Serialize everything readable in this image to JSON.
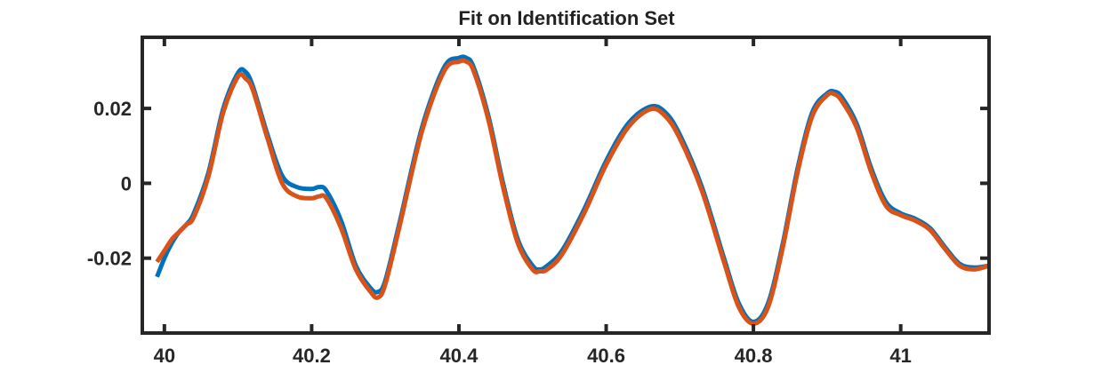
{
  "chart_data": {
    "type": "line",
    "title": "Fit on Identification Set",
    "xlabel": "",
    "ylabel": "",
    "xlim": [
      39.97,
      41.12
    ],
    "ylim": [
      -0.04,
      0.039
    ],
    "xticks": [
      40,
      40.2,
      40.4,
      40.6,
      40.8,
      41
    ],
    "xtick_labels": [
      "40",
      "40.2",
      "40.4",
      "40.6",
      "40.8",
      "41"
    ],
    "yticks": [
      -0.02,
      0,
      0.02
    ],
    "ytick_labels": [
      "-0.02",
      "0",
      "0.02"
    ],
    "grid": false,
    "legend": false,
    "series": [
      {
        "color": "#0072BD",
        "x": [
          39.99,
          40.0,
          40.01,
          40.02,
          40.03,
          40.04,
          40.06,
          40.08,
          40.1,
          40.11,
          40.12,
          40.14,
          40.16,
          40.18,
          40.2,
          40.21,
          40.22,
          40.24,
          40.26,
          40.28,
          40.29,
          40.3,
          40.32,
          40.35,
          40.38,
          40.4,
          40.41,
          40.42,
          40.44,
          40.46,
          40.48,
          40.5,
          40.51,
          40.52,
          40.54,
          40.57,
          40.6,
          40.63,
          40.66,
          40.68,
          40.7,
          40.73,
          40.76,
          40.78,
          40.8,
          40.82,
          40.84,
          40.86,
          40.88,
          40.9,
          40.91,
          40.92,
          40.94,
          40.96,
          40.98,
          41.0,
          41.02,
          41.04,
          41.06,
          41.08,
          41.1,
          41.12
        ],
        "y": [
          -0.025,
          -0.02,
          -0.016,
          -0.013,
          -0.011,
          -0.008,
          0.003,
          0.02,
          0.0295,
          0.0298,
          0.026,
          0.013,
          0.002,
          -0.001,
          -0.0015,
          -0.001,
          -0.002,
          -0.01,
          -0.022,
          -0.028,
          -0.029,
          -0.026,
          -0.01,
          0.015,
          0.031,
          0.0335,
          0.0335,
          0.031,
          0.018,
          0.0,
          -0.015,
          -0.022,
          -0.023,
          -0.022,
          -0.018,
          -0.007,
          0.006,
          0.016,
          0.0205,
          0.019,
          0.013,
          -0.001,
          -0.02,
          -0.032,
          -0.037,
          -0.032,
          -0.016,
          0.004,
          0.019,
          0.024,
          0.0245,
          0.023,
          0.016,
          0.004,
          -0.005,
          -0.008,
          -0.0095,
          -0.012,
          -0.017,
          -0.0215,
          -0.0225,
          -0.022
        ]
      },
      {
        "color": "#D95319",
        "x": [
          39.99,
          40.0,
          40.01,
          40.02,
          40.03,
          40.04,
          40.06,
          40.08,
          40.1,
          40.11,
          40.12,
          40.14,
          40.16,
          40.18,
          40.2,
          40.21,
          40.22,
          40.24,
          40.26,
          40.28,
          40.29,
          40.3,
          40.32,
          40.35,
          40.38,
          40.4,
          40.41,
          40.42,
          40.44,
          40.46,
          40.48,
          40.5,
          40.51,
          40.52,
          40.54,
          40.57,
          40.6,
          40.63,
          40.66,
          40.68,
          40.7,
          40.73,
          40.76,
          40.78,
          40.8,
          40.82,
          40.84,
          40.86,
          40.88,
          40.9,
          40.91,
          40.92,
          40.94,
          40.96,
          40.98,
          41.0,
          41.02,
          41.04,
          41.06,
          41.08,
          41.1,
          41.12
        ],
        "y": [
          -0.021,
          -0.018,
          -0.015,
          -0.013,
          -0.011,
          -0.009,
          0.002,
          0.019,
          0.0285,
          0.028,
          0.025,
          0.012,
          0.0,
          -0.0035,
          -0.004,
          -0.0035,
          -0.004,
          -0.012,
          -0.023,
          -0.029,
          -0.0305,
          -0.027,
          -0.011,
          0.014,
          0.03,
          0.0325,
          0.0325,
          0.03,
          0.017,
          -0.001,
          -0.016,
          -0.023,
          -0.0235,
          -0.023,
          -0.019,
          -0.008,
          0.005,
          0.015,
          0.0198,
          0.018,
          0.012,
          -0.002,
          -0.021,
          -0.033,
          -0.0375,
          -0.033,
          -0.017,
          0.003,
          0.018,
          0.0235,
          0.0238,
          0.022,
          0.015,
          0.003,
          -0.006,
          -0.0085,
          -0.01,
          -0.0125,
          -0.0175,
          -0.022,
          -0.023,
          -0.022
        ]
      }
    ]
  }
}
